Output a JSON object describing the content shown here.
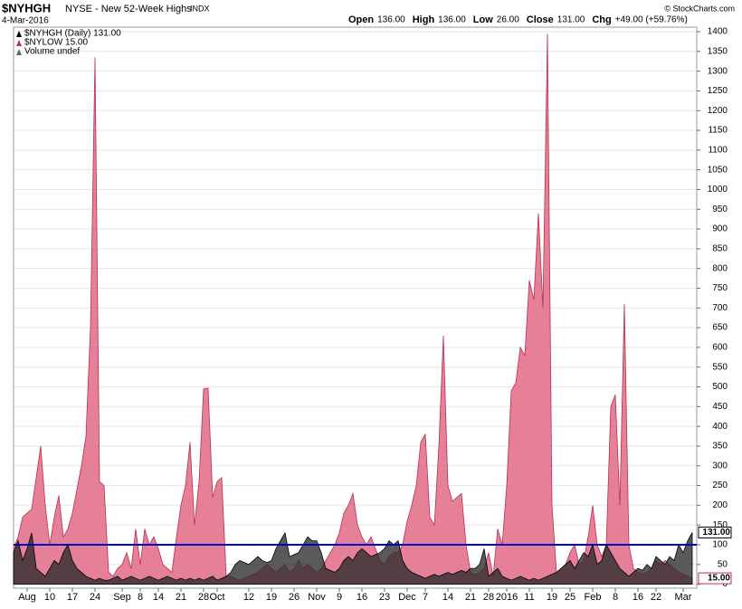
{
  "chart_data": {
    "type": "area",
    "symbol": "$NYHGH",
    "title": "NYSE - New 52-Week Highs",
    "exchange": "INDX",
    "date": "4-Mar-2016",
    "stats": [
      {
        "label": "Open",
        "value": "136.00"
      },
      {
        "label": "High",
        "value": "136.00"
      },
      {
        "label": "Low",
        "value": "26.00"
      },
      {
        "label": "Close",
        "value": "131.00"
      },
      {
        "label": "Chg",
        "value": "+49.00 (+59.76%)"
      }
    ],
    "copyright": "© StockCharts.com",
    "legend": [
      "$NYHGH (Daily) 131.00",
      "$NYLOW 15.00",
      "Volume undef"
    ],
    "categories": [
      null,
      null,
      null,
      "Aug",
      null,
      null,
      null,
      null,
      "10",
      null,
      null,
      null,
      null,
      "17",
      null,
      null,
      null,
      null,
      "24",
      null,
      null,
      null,
      null,
      null,
      "Sep",
      null,
      null,
      null,
      "8",
      null,
      null,
      null,
      "14",
      null,
      null,
      null,
      null,
      "21",
      null,
      null,
      null,
      null,
      "28",
      null,
      null,
      "Oct",
      null,
      null,
      null,
      null,
      null,
      null,
      "12",
      null,
      null,
      null,
      null,
      "19",
      null,
      null,
      null,
      null,
      "26",
      null,
      null,
      null,
      null,
      "Nov",
      null,
      null,
      null,
      null,
      "9",
      null,
      null,
      null,
      null,
      "16",
      null,
      null,
      null,
      null,
      "23",
      null,
      null,
      null,
      null,
      "Dec",
      null,
      null,
      null,
      "7",
      null,
      null,
      null,
      null,
      "14",
      null,
      null,
      null,
      null,
      "21",
      null,
      null,
      null,
      "28",
      null,
      null,
      null,
      "2016",
      null,
      null,
      null,
      null,
      "11",
      null,
      null,
      null,
      null,
      "19",
      null,
      null,
      null,
      "25",
      null,
      null,
      null,
      null,
      "Feb",
      null,
      null,
      null,
      null,
      "8",
      null,
      null,
      null,
      null,
      "16",
      null,
      null,
      null,
      "22",
      null,
      null,
      null,
      null,
      null,
      "Mar",
      null,
      null
    ],
    "series": [
      {
        "name": "$NYLOW",
        "color": "#e06a86",
        "stroke": "#b8304f",
        "values": [
          90,
          120,
          170,
          180,
          190,
          270,
          350,
          200,
          100,
          170,
          225,
          120,
          140,
          180,
          240,
          300,
          375,
          650,
          1335,
          260,
          250,
          30,
          20,
          40,
          50,
          80,
          40,
          140,
          50,
          140,
          100,
          120,
          90,
          50,
          40,
          30,
          120,
          200,
          250,
          360,
          150,
          260,
          495,
          497,
          220,
          260,
          270,
          20,
          20,
          15,
          10,
          15,
          20,
          25,
          30,
          40,
          50,
          40,
          30,
          40,
          50,
          30,
          40,
          60,
          40,
          50,
          40,
          30,
          40,
          60,
          80,
          100,
          130,
          180,
          200,
          230,
          150,
          120,
          100,
          120,
          90,
          60,
          50,
          70,
          80,
          80,
          100,
          160,
          200,
          250,
          360,
          380,
          170,
          150,
          350,
          630,
          250,
          210,
          220,
          230,
          100,
          30,
          25,
          30,
          40,
          80,
          20,
          140,
          100,
          250,
          490,
          510,
          600,
          580,
          770,
          720,
          940,
          700,
          1395,
          200,
          30,
          40,
          50,
          80,
          100,
          50,
          60,
          120,
          200,
          100,
          70,
          100,
          450,
          480,
          200,
          710,
          100,
          40,
          30,
          25,
          30,
          40,
          60,
          50,
          60,
          50,
          40,
          30,
          25,
          20,
          15
        ]
      },
      {
        "name": "$NYHGH",
        "color": "#2b2b2b",
        "stroke": "#000000",
        "values": [
          80,
          110,
          60,
          90,
          130,
          40,
          30,
          20,
          40,
          60,
          50,
          80,
          100,
          60,
          40,
          30,
          20,
          15,
          10,
          15,
          10,
          10,
          15,
          20,
          10,
          15,
          20,
          15,
          10,
          15,
          20,
          15,
          10,
          15,
          20,
          15,
          10,
          15,
          10,
          15,
          10,
          15,
          10,
          15,
          20,
          10,
          15,
          20,
          30,
          50,
          60,
          55,
          50,
          60,
          70,
          60,
          55,
          60,
          90,
          110,
          130,
          70,
          75,
          80,
          100,
          120,
          110,
          110,
          80,
          40,
          35,
          30,
          40,
          60,
          70,
          60,
          80,
          90,
          80,
          70,
          75,
          80,
          90,
          110,
          100,
          110,
          60,
          40,
          30,
          25,
          20,
          15,
          20,
          25,
          20,
          25,
          30,
          25,
          30,
          35,
          30,
          40,
          40,
          50,
          90,
          20,
          30,
          40,
          20,
          15,
          10,
          15,
          20,
          15,
          10,
          15,
          10,
          15,
          20,
          25,
          30,
          40,
          50,
          60,
          40,
          60,
          80,
          70,
          100,
          50,
          60,
          100,
          80,
          60,
          40,
          30,
          20,
          30,
          40,
          35,
          50,
          40,
          70,
          60,
          50,
          70,
          60,
          100,
          80,
          110,
          131
        ]
      }
    ],
    "price_tags": [
      {
        "value": 131,
        "label": "131.00",
        "series": 1
      },
      {
        "value": 15,
        "label": "15.00",
        "series": 0
      }
    ],
    "reference_line": {
      "value": 100,
      "color": "#0000cc"
    },
    "ylim": [
      0,
      1400
    ],
    "yticks": [
      0,
      50,
      100,
      150,
      200,
      250,
      300,
      350,
      400,
      450,
      500,
      550,
      600,
      650,
      700,
      750,
      800,
      850,
      900,
      950,
      1000,
      1050,
      1100,
      1150,
      1200,
      1250,
      1300,
      1350,
      1400
    ],
    "grid": true
  }
}
